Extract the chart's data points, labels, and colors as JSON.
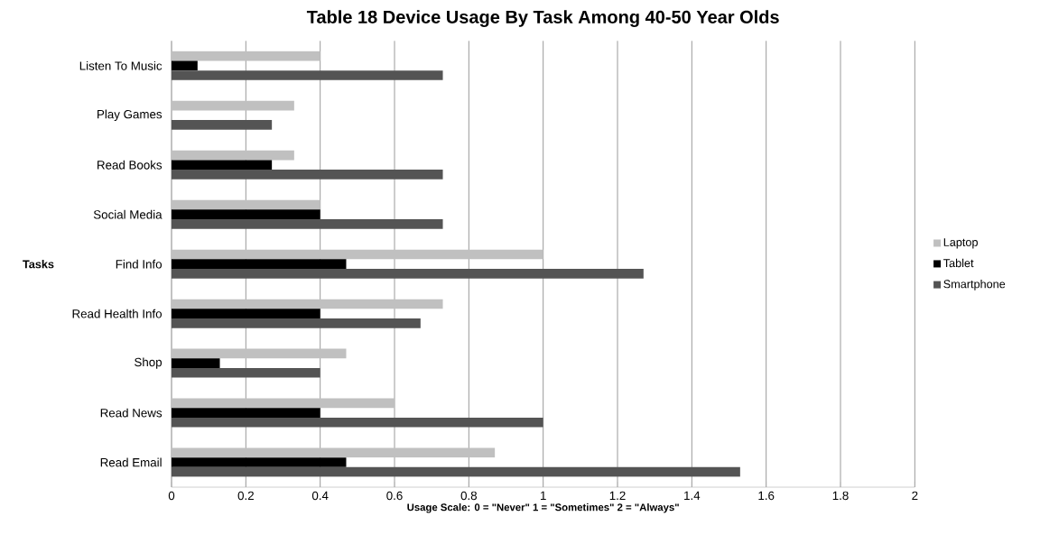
{
  "chart_data": {
    "type": "bar",
    "orientation": "horizontal",
    "title": "Table 18 Device Usage By Task Among 40-50 Year Olds",
    "xlabel": "Usage Scale: 0 = \"Never\"  1 = \"Sometimes\"  2 = \"Always\"",
    "ylabel": "Tasks",
    "categories": [
      "Listen To Music",
      "Play Games",
      "Read Books",
      "Social Media",
      "Find Info",
      "Read Health Info",
      "Shop",
      "Read News",
      "Read Email"
    ],
    "series": [
      {
        "name": "Laptop",
        "color": "#c0c0c0",
        "values": [
          0.4,
          0.33,
          0.33,
          0.4,
          1.0,
          0.73,
          0.47,
          0.6,
          0.87
        ]
      },
      {
        "name": "Tablet",
        "color": "#000000",
        "values": [
          0.07,
          0,
          0.27,
          0.4,
          0.47,
          0.4,
          0.13,
          0.4,
          0.47
        ]
      },
      {
        "name": "Smartphone",
        "color": "#545454",
        "values": [
          0.73,
          0.27,
          0.73,
          0.73,
          1.27,
          0.67,
          0.4,
          1.0,
          1.53
        ]
      }
    ],
    "xlim": [
      0,
      2
    ],
    "xticks": [
      0,
      0.2,
      0.4,
      0.6,
      0.8,
      1,
      1.2,
      1.4,
      1.6,
      1.8,
      2
    ],
    "grid": "x",
    "legend": "right"
  }
}
